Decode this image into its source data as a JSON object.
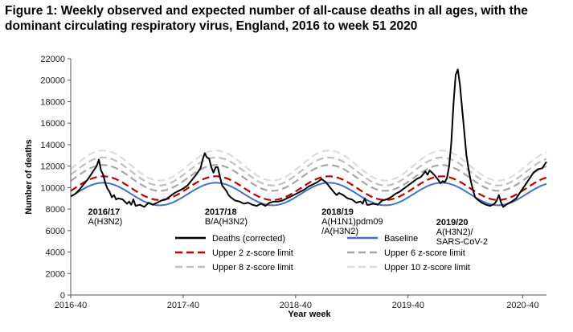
{
  "chart_data": {
    "type": "line",
    "title": "Figure 1: Weekly observed and expected number of all-cause deaths in all ages, with the dominant circulating respiratory virus, England, 2016 to week 51 2020",
    "xlabel": "Year week",
    "ylabel": "Number of deaths",
    "ylim": [
      0,
      22000
    ],
    "yticks": [
      "0",
      "2000",
      "4000",
      "6000",
      "8000",
      "10000",
      "12000",
      "14000",
      "16000",
      "18000",
      "20000",
      "22000"
    ],
    "xticks": [
      {
        "label": "2016-40",
        "week_index": 0
      },
      {
        "label": "2017-40",
        "week_index": 52
      },
      {
        "label": "2018-40",
        "week_index": 104
      },
      {
        "label": "2019-40",
        "week_index": 156
      },
      {
        "label": "2020-40",
        "week_index": 209
      }
    ],
    "x_range_weeks": [
      0,
      220
    ],
    "grid": false,
    "legend_position": "bottom",
    "annotations": [
      {
        "season": "2016/17",
        "virus": [
          "A(H3N2)"
        ],
        "week_index": 8,
        "y": 7500
      },
      {
        "season": "2017/18",
        "virus": [
          "B/A(H3N2)"
        ],
        "week_index": 62,
        "y": 7500
      },
      {
        "season": "2018/19",
        "virus": [
          "A(H1N1)pdm09",
          "/A(H3N2)"
        ],
        "week_index": 116,
        "y": 7500
      },
      {
        "season": "2019/20",
        "virus": [
          "A(H3N2)/",
          "SARS-CoV-2"
        ],
        "week_index": 169,
        "y": 6500
      }
    ],
    "series": [
      {
        "name": "Deaths (corrected)",
        "style": "solid",
        "color": "#000000",
        "points": [
          [
            0,
            9200
          ],
          [
            2,
            9400
          ],
          [
            4,
            9800
          ],
          [
            6,
            10300
          ],
          [
            8,
            10800
          ],
          [
            10,
            11400
          ],
          [
            11,
            11700
          ],
          [
            12,
            12000
          ],
          [
            13,
            12600
          ],
          [
            14,
            11600
          ],
          [
            15,
            11200
          ],
          [
            16,
            10400
          ],
          [
            17,
            9900
          ],
          [
            18,
            9600
          ],
          [
            19,
            9100
          ],
          [
            20,
            9300
          ],
          [
            21,
            8900
          ],
          [
            22,
            9000
          ],
          [
            24,
            8900
          ],
          [
            25,
            8700
          ],
          [
            26,
            8500
          ],
          [
            27,
            8700
          ],
          [
            28,
            8400
          ],
          [
            29,
            8900
          ],
          [
            30,
            8300
          ],
          [
            32,
            8400
          ],
          [
            34,
            8200
          ],
          [
            36,
            8600
          ],
          [
            38,
            8400
          ],
          [
            40,
            8600
          ],
          [
            42,
            8800
          ],
          [
            44,
            8900
          ],
          [
            46,
            9200
          ],
          [
            48,
            9500
          ],
          [
            50,
            9700
          ],
          [
            52,
            9900
          ],
          [
            54,
            10200
          ],
          [
            56,
            10700
          ],
          [
            58,
            11200
          ],
          [
            60,
            11800
          ],
          [
            61,
            12600
          ],
          [
            62,
            13200
          ],
          [
            63,
            12800
          ],
          [
            64,
            12700
          ],
          [
            65,
            11900
          ],
          [
            66,
            11400
          ],
          [
            67,
            11900
          ],
          [
            68,
            11900
          ],
          [
            69,
            11000
          ],
          [
            70,
            10200
          ],
          [
            72,
            9700
          ],
          [
            73,
            9300
          ],
          [
            74,
            9100
          ],
          [
            76,
            8800
          ],
          [
            78,
            8700
          ],
          [
            80,
            8500
          ],
          [
            82,
            8600
          ],
          [
            84,
            8400
          ],
          [
            86,
            8300
          ],
          [
            88,
            8500
          ],
          [
            90,
            8300
          ],
          [
            92,
            8600
          ],
          [
            94,
            8700
          ],
          [
            96,
            8700
          ],
          [
            98,
            8800
          ],
          [
            100,
            9000
          ],
          [
            102,
            9200
          ],
          [
            104,
            9400
          ],
          [
            106,
            9600
          ],
          [
            108,
            9800
          ],
          [
            110,
            10100
          ],
          [
            112,
            10300
          ],
          [
            114,
            10500
          ],
          [
            116,
            10800
          ],
          [
            118,
            10500
          ],
          [
            120,
            10000
          ],
          [
            122,
            9500
          ],
          [
            123,
            9300
          ],
          [
            124,
            9500
          ],
          [
            126,
            9300
          ],
          [
            128,
            9000
          ],
          [
            130,
            8900
          ],
          [
            132,
            8600
          ],
          [
            134,
            8700
          ],
          [
            135,
            8500
          ],
          [
            136,
            9000
          ],
          [
            137,
            8400
          ],
          [
            138,
            8400
          ],
          [
            140,
            8500
          ],
          [
            142,
            8400
          ],
          [
            144,
            8800
          ],
          [
            146,
            8900
          ],
          [
            148,
            9100
          ],
          [
            150,
            9400
          ],
          [
            152,
            9600
          ],
          [
            154,
            9900
          ],
          [
            156,
            10200
          ],
          [
            158,
            10500
          ],
          [
            160,
            10800
          ],
          [
            162,
            11000
          ],
          [
            164,
            11500
          ],
          [
            165,
            11200
          ],
          [
            166,
            11600
          ],
          [
            168,
            11200
          ],
          [
            170,
            10700
          ],
          [
            171,
            10400
          ],
          [
            172,
            10600
          ],
          [
            173,
            10500
          ],
          [
            174,
            10900
          ],
          [
            175,
            12000
          ],
          [
            176,
            14200
          ],
          [
            177,
            17800
          ],
          [
            178,
            20500
          ],
          [
            179,
            21000
          ],
          [
            180,
            19500
          ],
          [
            181,
            17300
          ],
          [
            182,
            15200
          ],
          [
            183,
            13000
          ],
          [
            184,
            11700
          ],
          [
            185,
            10600
          ],
          [
            186,
            9800
          ],
          [
            187,
            9100
          ],
          [
            188,
            8900
          ],
          [
            190,
            8600
          ],
          [
            192,
            8400
          ],
          [
            194,
            8300
          ],
          [
            196,
            8500
          ],
          [
            197,
            8800
          ],
          [
            198,
            9300
          ],
          [
            199,
            8600
          ],
          [
            200,
            8200
          ],
          [
            202,
            8500
          ],
          [
            204,
            8700
          ],
          [
            206,
            9000
          ],
          [
            208,
            9600
          ],
          [
            210,
            10200
          ],
          [
            212,
            10800
          ],
          [
            214,
            11400
          ],
          [
            216,
            11700
          ],
          [
            218,
            11800
          ],
          [
            220,
            12400
          ]
        ]
      },
      {
        "name": "Baseline",
        "style": "solid",
        "color": "#4472c4",
        "mean": 9400,
        "amplitude": 1050,
        "peak_week": 15,
        "period": 52.2
      },
      {
        "name": "Upper 2 z-score limit",
        "style": "dashed",
        "color": "#c00000",
        "mean": 9950,
        "amplitude": 1100,
        "peak_week": 15,
        "period": 52.2
      },
      {
        "name": "Upper 6 z-score limit",
        "style": "dashed",
        "color": "#a6a6a6",
        "mean": 10900,
        "amplitude": 1200,
        "peak_week": 15,
        "period": 52.2
      },
      {
        "name": "Upper 8 z-score limit",
        "style": "dashed",
        "color": "#bfbfbf",
        "mean": 11500,
        "amplitude": 1300,
        "peak_week": 15,
        "period": 52.2
      },
      {
        "name": "Upper 10 z-score limit",
        "style": "dashed",
        "color": "#dcdcdc",
        "mean": 12050,
        "amplitude": 1400,
        "peak_week": 15,
        "period": 52.2
      }
    ]
  }
}
